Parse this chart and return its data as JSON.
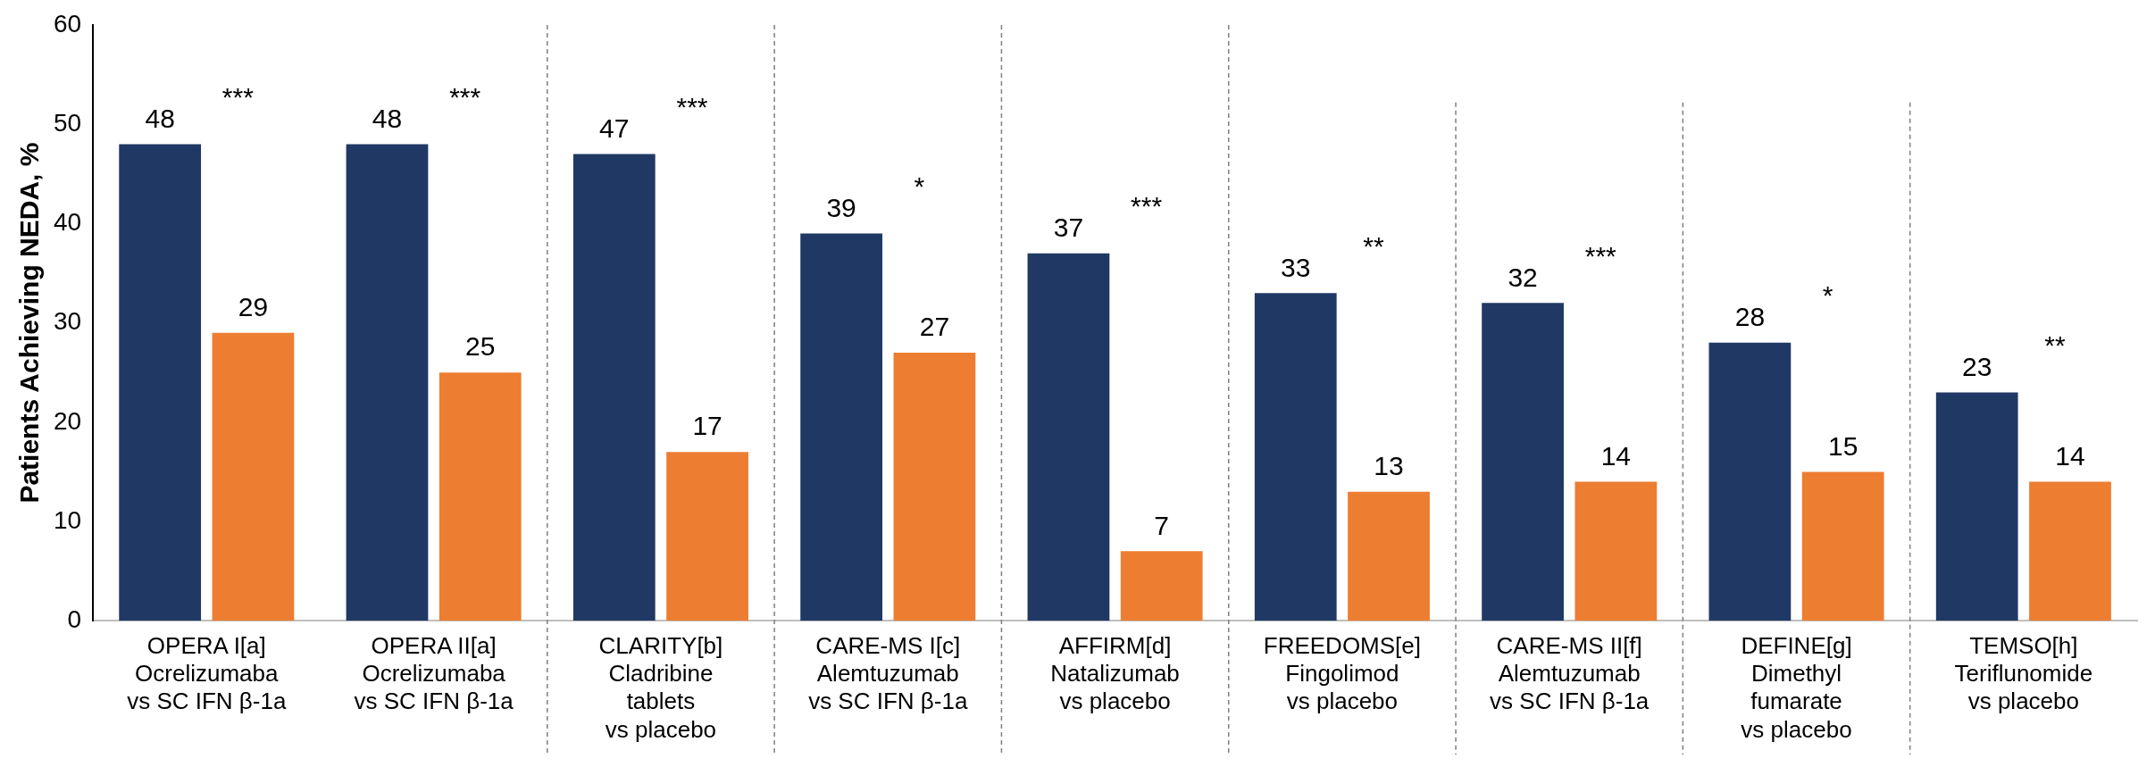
{
  "chart_data": {
    "type": "bar",
    "ylabel": "Patients Achieving NEDA, %",
    "categories": [
      "OPERA I[a]\nOcrelizumaba\nvs SC IFN β-1a",
      "OPERA II[a]\nOcrelizumaba\nvs SC IFN β-1a",
      "CLARITY[b]\nCladribine\ntablets\nvs placebo",
      "CARE-MS I[c]\nAlemtuzumab\nvs SC IFN β-1a",
      "AFFIRM[d]\nNatalizumab\nvs placebo",
      "FREEDOMS[e]\nFingolimod\nvs placebo",
      "CARE-MS II[f]\nAlemtuzumab\nvs SC IFN β-1a",
      "DEFINE[g]\nDimethyl\nfumarate\nvs placebo",
      "TEMSO[h]\nTeriflunomide\nvs placebo"
    ],
    "series": [
      {
        "color": "#203864",
        "values": [
          48,
          48,
          47,
          39,
          37,
          33,
          32,
          28,
          23
        ]
      },
      {
        "color": "#ed7d31",
        "values": [
          29,
          25,
          17,
          27,
          7,
          13,
          14,
          15,
          14
        ]
      }
    ],
    "ylim": [
      0,
      60
    ],
    "yticks": [
      0,
      10,
      20,
      30,
      40,
      50,
      60
    ],
    "grid": false,
    "legend": false,
    "data_labels": true,
    "annotations": [
      "***",
      "***",
      "***",
      "*",
      "***",
      "**",
      "***",
      "*",
      "**"
    ]
  }
}
